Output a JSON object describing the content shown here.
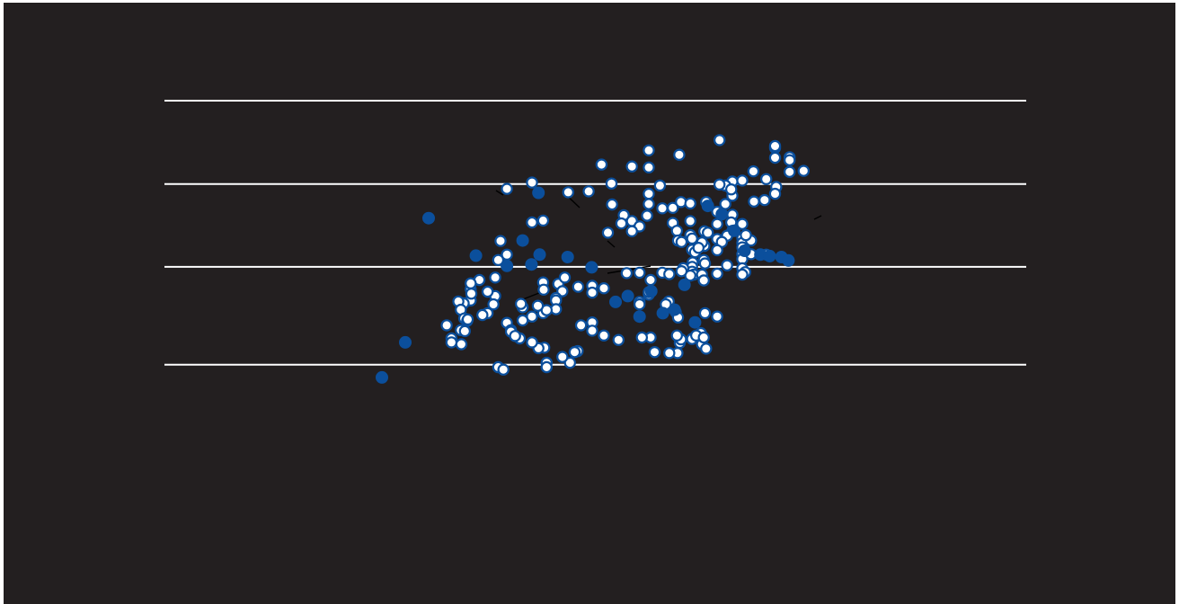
{
  "chart_data": {
    "type": "scatter",
    "title": "",
    "xlabel": "",
    "ylabel": "",
    "xlim": [
      0,
      100
    ],
    "ylim": [
      0,
      100
    ],
    "grid": true,
    "gridlines_y": [
      31.4,
      51.5,
      68.5,
      85.6
    ],
    "colors": {
      "background": "#231f20",
      "point": "#0b4f9c",
      "point_fill_hollow": "#ffffff",
      "grid": "#ffffff",
      "frame": "#ffffff",
      "annotation": "#000000"
    },
    "series": [
      {
        "style": "hollow",
        "points": [
          [
            59.8,
            77.5
          ],
          [
            69.3,
            75.9
          ],
          [
            69.3,
            76.3
          ],
          [
            71.8,
            74.0
          ],
          [
            71.8,
            73.4
          ],
          [
            69.3,
            73.9
          ],
          [
            71.8,
            71.0
          ],
          [
            52.9,
            74.5
          ],
          [
            65.6,
            71.1
          ],
          [
            67.8,
            69.5
          ],
          [
            74.2,
            71.2
          ],
          [
            62.0,
            69.0
          ],
          [
            60.8,
            68.2
          ],
          [
            62.0,
            66.1
          ],
          [
            59.8,
            68.4
          ],
          [
            63.7,
            69.2
          ],
          [
            61.8,
            67.4
          ],
          [
            47.7,
            71.9
          ],
          [
            69.5,
            67.9
          ],
          [
            49.6,
            68.2
          ],
          [
            57.5,
            64.8
          ],
          [
            47.7,
            66.5
          ],
          [
            47.7,
            64.4
          ],
          [
            44.8,
            60.9
          ],
          [
            51.8,
            60.5
          ],
          [
            53.2,
            64.8
          ],
          [
            51.8,
            63.6
          ],
          [
            50.0,
            63.5
          ],
          [
            43.4,
            62.1
          ],
          [
            41.4,
            64.3
          ],
          [
            43.0,
            60.4
          ],
          [
            47.4,
            62.0
          ],
          [
            40.7,
            58.5
          ],
          [
            46.1,
            59.8
          ],
          [
            44.8,
            58.8
          ],
          [
            69.3,
            66.5
          ],
          [
            67.5,
            65.2
          ],
          [
            65.7,
            64.9
          ],
          [
            60.8,
            64.4
          ],
          [
            54.8,
            64.5
          ],
          [
            54.8,
            60.9
          ],
          [
            57.2,
            58.8
          ],
          [
            54.8,
            58.0
          ],
          [
            57.8,
            58.5
          ],
          [
            52.5,
            58.9
          ],
          [
            59.4,
            62.8
          ],
          [
            62.0,
            62.2
          ],
          [
            61.8,
            60.6
          ],
          [
            63.7,
            60.3
          ],
          [
            59.4,
            60.3
          ],
          [
            62.0,
            58.9
          ],
          [
            61.1,
            57.9
          ],
          [
            59.4,
            57.2
          ],
          [
            60.2,
            56.6
          ],
          [
            57.2,
            55.8
          ],
          [
            59.4,
            54.9
          ],
          [
            55.1,
            57.3
          ],
          [
            55.1,
            55.0
          ],
          [
            55.6,
            54.5
          ],
          [
            52.7,
            56.9
          ],
          [
            53.3,
            56.6
          ],
          [
            56.8,
            56.5
          ],
          [
            56.2,
            55.4
          ],
          [
            63.7,
            57.4
          ],
          [
            63.7,
            56.4
          ],
          [
            63.7,
            55.5
          ],
          [
            65.2,
            56.9
          ],
          [
            63.7,
            54.1
          ],
          [
            63.7,
            53.1
          ],
          [
            67.8,
            54.0
          ],
          [
            65.2,
            54.1
          ],
          [
            64.3,
            58.0
          ],
          [
            57.1,
            52.9
          ],
          [
            57.3,
            52.2
          ],
          [
            55.2,
            52.4
          ],
          [
            55.1,
            51.5
          ],
          [
            55.1,
            50.5
          ],
          [
            55.4,
            49.9
          ],
          [
            54.8,
            49.7
          ],
          [
            53.6,
            51.2
          ],
          [
            53.3,
            50.6
          ],
          [
            56.8,
            49.9
          ],
          [
            57.1,
            48.7
          ],
          [
            59.4,
            50.1
          ],
          [
            61.1,
            51.8
          ],
          [
            63.7,
            51.2
          ],
          [
            64.2,
            50.4
          ],
          [
            63.7,
            49.9
          ],
          [
            43.9,
            50.2
          ],
          [
            46.1,
            50.3
          ],
          [
            50.0,
            50.3
          ],
          [
            51.2,
            50.0
          ],
          [
            48.0,
            48.8
          ],
          [
            40.0,
            47.1
          ],
          [
            47.7,
            45.8
          ],
          [
            47.7,
            46.3
          ],
          [
            46.1,
            44.3
          ],
          [
            46.1,
            43.8
          ],
          [
            52.3,
            42.2
          ],
          [
            51.1,
            44.4
          ],
          [
            50.6,
            43.8
          ],
          [
            52.7,
            41.1
          ],
          [
            59.4,
            41.3
          ],
          [
            57.3,
            42.0
          ],
          [
            56.6,
            37.9
          ],
          [
            55.1,
            36.7
          ],
          [
            55.8,
            37.4
          ],
          [
            53.0,
            35.9
          ],
          [
            53.2,
            36.6
          ],
          [
            52.5,
            37.4
          ],
          [
            56.8,
            35.6
          ],
          [
            57.1,
            37.0
          ],
          [
            57.5,
            34.7
          ],
          [
            52.6,
            33.8
          ],
          [
            51.2,
            33.8
          ],
          [
            48.7,
            34.0
          ],
          [
            48.0,
            37.0
          ],
          [
            46.5,
            37.0
          ],
          [
            42.5,
            36.5
          ],
          [
            40.0,
            37.4
          ],
          [
            38.0,
            40.1
          ],
          [
            38.0,
            38.4
          ],
          [
            36.1,
            39.5
          ],
          [
            35.5,
            34.2
          ],
          [
            35.0,
            34.0
          ],
          [
            34.2,
            31.8
          ],
          [
            32.9,
            33.0
          ],
          [
            30.2,
            31.8
          ],
          [
            30.2,
            30.9
          ],
          [
            29.8,
            34.9
          ],
          [
            28.8,
            34.8
          ],
          [
            27.7,
            36.0
          ],
          [
            25.6,
            36.8
          ],
          [
            23.4,
            40.0
          ],
          [
            27.7,
            41.3
          ],
          [
            26.1,
            43.2
          ],
          [
            25.8,
            43.9
          ],
          [
            21.4,
            45.5
          ],
          [
            29.6,
            48.3
          ],
          [
            29.7,
            46.8
          ],
          [
            32.2,
            48.0
          ],
          [
            33.3,
            49.3
          ],
          [
            35.6,
            47.4
          ],
          [
            38.0,
            47.6
          ],
          [
            38.0,
            46.2
          ],
          [
            32.9,
            46.5
          ],
          [
            31.8,
            45.1
          ],
          [
            31.8,
            44.6
          ],
          [
            26.1,
            40.5
          ],
          [
            24.1,
            38.5
          ],
          [
            24.1,
            38.2
          ],
          [
            24.8,
            37.3
          ],
          [
            31.8,
            42.8
          ],
          [
            29.6,
            42.0
          ],
          [
            30.2,
            42.6
          ],
          [
            28.7,
            43.5
          ],
          [
            20.1,
            42.0
          ],
          [
            15.5,
            38.5
          ],
          [
            13.9,
            36.8
          ],
          [
            13.9,
            36.0
          ],
          [
            22.3,
            56.8
          ],
          [
            27.7,
            68.8
          ],
          [
            23.4,
            67.5
          ],
          [
            21.9,
            52.9
          ],
          [
            23.4,
            54.0
          ],
          [
            21.4,
            49.3
          ],
          [
            20.1,
            46.4
          ],
          [
            18.7,
            48.8
          ],
          [
            17.2,
            44.6
          ],
          [
            17.2,
            46.9
          ],
          [
            17.2,
            48.1
          ],
          [
            16.0,
            44.0
          ],
          [
            15.1,
            44.4
          ],
          [
            15.5,
            42.7
          ],
          [
            16.1,
            40.9
          ],
          [
            16.6,
            40.4
          ],
          [
            37.4,
            67.0
          ],
          [
            41.3,
            68.6
          ],
          [
            44.8,
            72.1
          ],
          [
            47.7,
            75.4
          ],
          [
            39.6,
            72.5
          ],
          [
            33.9,
            66.8
          ],
          [
            29.6,
            61.0
          ],
          [
            27.7,
            60.6
          ],
          [
            21.1,
            43.8
          ],
          [
            19.2,
            41.6
          ],
          [
            16.7,
            40.7
          ],
          [
            17.3,
            46.0
          ],
          [
            15.6,
            35.6
          ],
          [
            21.9,
            30.9
          ],
          [
            22.8,
            30.4
          ],
          [
            13.1,
            39.5
          ],
          [
            16.2,
            38.3
          ]
        ]
      },
      {
        "style": "solid",
        "points": [
          [
            2.0,
            28.8
          ],
          [
            6.0,
            36.0
          ],
          [
            10.0,
            61.5
          ],
          [
            18.1,
            53.8
          ],
          [
            23.4,
            51.7
          ],
          [
            26.1,
            56.9
          ],
          [
            29.0,
            54.0
          ],
          [
            33.8,
            53.5
          ],
          [
            37.9,
            51.4
          ],
          [
            42.0,
            44.3
          ],
          [
            44.1,
            45.5
          ],
          [
            46.1,
            41.3
          ],
          [
            48.1,
            46.5
          ],
          [
            50.1,
            42.0
          ],
          [
            52.1,
            42.7
          ],
          [
            53.8,
            47.8
          ],
          [
            55.6,
            40.1
          ],
          [
            57.8,
            64.0
          ],
          [
            60.2,
            62.3
          ],
          [
            62.3,
            58.9
          ],
          [
            64.1,
            54.8
          ],
          [
            66.8,
            54.0
          ],
          [
            68.4,
            53.7
          ],
          [
            70.4,
            53.5
          ],
          [
            71.6,
            52.8
          ],
          [
            28.8,
            66.7
          ],
          [
            27.6,
            52.0
          ]
        ]
      }
    ]
  }
}
